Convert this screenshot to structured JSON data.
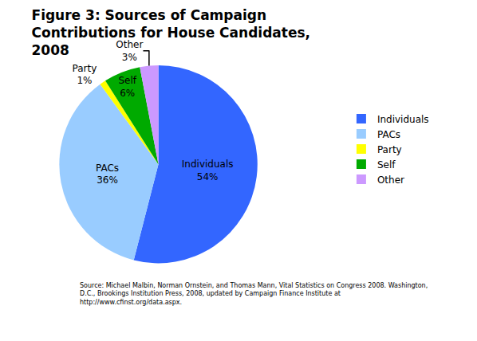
{
  "chart_data": {
    "type": "pie",
    "title": "Figure 3: Sources of Campaign Contributions for House Candidates, 2008",
    "categories": [
      "Individuals",
      "PACs",
      "Party",
      "Self",
      "Other"
    ],
    "values": [
      54,
      36,
      1,
      6,
      3
    ],
    "value_labels": [
      "54%",
      "36%",
      "1%",
      "6%",
      "3%"
    ],
    "colors": [
      "#3366ff",
      "#99ccff",
      "#ffff00",
      "#00aa00",
      "#cc99ff"
    ],
    "data_labels": true,
    "legend": "right",
    "annotations": [
      "Source: Michael Malbin, Norman Ornstein, and Thomas Mann, Vital Statistics on Congress 2008. Washington, D.C., Brookings Institution Press, 2008, updated by Campaign Finance Institute at http://www.cfinst.org/data.aspx."
    ]
  }
}
